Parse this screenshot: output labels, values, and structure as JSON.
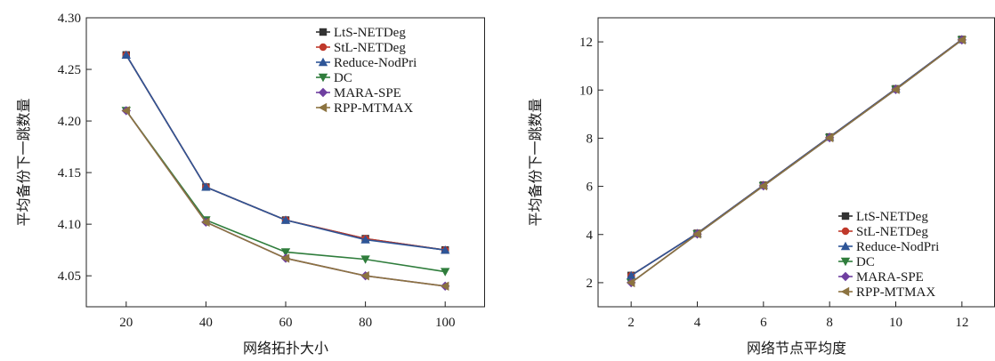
{
  "chart_data": [
    {
      "type": "line",
      "title": "",
      "xlabel": "网络拓扑大小",
      "ylabel": "平均备份下一跳数量",
      "x": [
        20,
        40,
        60,
        80,
        100
      ],
      "xticks": [
        "20",
        "40",
        "60",
        "80",
        "100"
      ],
      "xlim": [
        10,
        110
      ],
      "ylim": [
        4.02,
        4.3
      ],
      "yticks": [
        "4.05",
        "4.10",
        "4.15",
        "4.20",
        "4.25",
        "4.30"
      ],
      "ytick_values": [
        4.05,
        4.1,
        4.15,
        4.2,
        4.25,
        4.3
      ],
      "grid": false,
      "legend_position": "top-right",
      "series": [
        {
          "name": "LtS-NETDeg",
          "color": "#333333",
          "marker": "square",
          "values": [
            4.264,
            4.136,
            4.104,
            4.086,
            4.075
          ]
        },
        {
          "name": "StL-NETDeg",
          "color": "#c0392b",
          "marker": "circle",
          "values": [
            4.264,
            4.136,
            4.104,
            4.086,
            4.075
          ]
        },
        {
          "name": "Reduce-NodPri",
          "color": "#2e5597",
          "marker": "triangle-up",
          "values": [
            4.264,
            4.136,
            4.104,
            4.085,
            4.075
          ]
        },
        {
          "name": "DC",
          "color": "#2f7d3c",
          "marker": "triangle-down",
          "values": [
            4.21,
            4.104,
            4.073,
            4.066,
            4.054
          ]
        },
        {
          "name": "MARA-SPE",
          "color": "#6f3fa0",
          "marker": "diamond",
          "values": [
            4.21,
            4.102,
            4.067,
            4.05,
            4.04
          ]
        },
        {
          "name": "RPP-MTMAX",
          "color": "#8c7340",
          "marker": "triangle-left",
          "values": [
            4.21,
            4.102,
            4.067,
            4.05,
            4.04
          ]
        }
      ]
    },
    {
      "type": "line",
      "title": "",
      "xlabel": "网络节点平均度",
      "ylabel": "平均备份下一跳数量",
      "x": [
        2,
        4,
        6,
        8,
        10,
        12
      ],
      "xticks": [
        "2",
        "4",
        "6",
        "8",
        "10",
        "12"
      ],
      "xlim": [
        1,
        13
      ],
      "ylim": [
        1,
        13
      ],
      "yticks": [
        "2",
        "4",
        "6",
        "8",
        "10",
        "12"
      ],
      "ytick_values": [
        2,
        4,
        6,
        8,
        10,
        12
      ],
      "grid": false,
      "legend_position": "bottom-right",
      "series": [
        {
          "name": "LtS-NETDeg",
          "color": "#333333",
          "marker": "square",
          "values": [
            2.3,
            4.05,
            6.05,
            8.05,
            10.05,
            12.1
          ]
        },
        {
          "name": "StL-NETDeg",
          "color": "#c0392b",
          "marker": "circle",
          "values": [
            2.3,
            4.05,
            6.05,
            8.05,
            10.05,
            12.1
          ]
        },
        {
          "name": "Reduce-NodPri",
          "color": "#2e5597",
          "marker": "triangle-up",
          "values": [
            2.3,
            4.05,
            6.05,
            8.05,
            10.05,
            12.1
          ]
        },
        {
          "name": "DC",
          "color": "#2f7d3c",
          "marker": "triangle-down",
          "values": [
            2.0,
            4.02,
            6.02,
            8.02,
            10.02,
            12.08
          ]
        },
        {
          "name": "MARA-SPE",
          "color": "#6f3fa0",
          "marker": "diamond",
          "values": [
            2.0,
            4.02,
            6.02,
            8.02,
            10.02,
            12.08
          ]
        },
        {
          "name": "RPP-MTMAX",
          "color": "#8c7340",
          "marker": "triangle-left",
          "values": [
            2.0,
            4.02,
            6.02,
            8.02,
            10.02,
            12.08
          ]
        }
      ]
    }
  ]
}
